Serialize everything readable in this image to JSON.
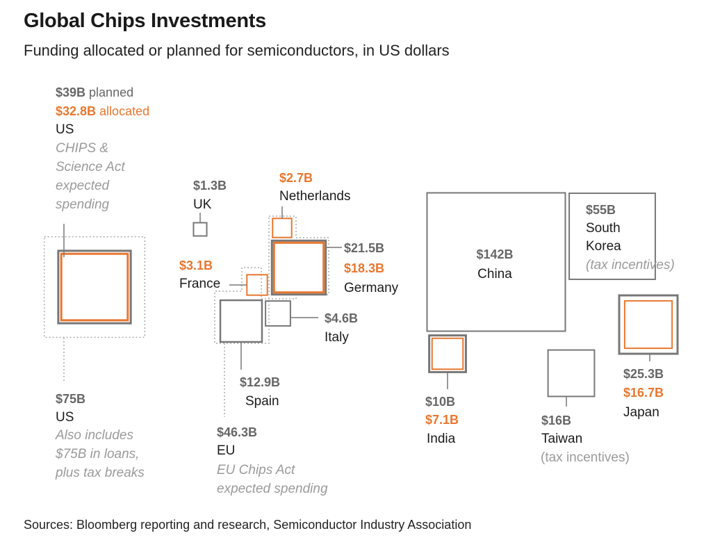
{
  "chart_data": {
    "type": "proportional-area",
    "title": "Global Chips Investments",
    "subtitle": "Funding allocated or planned for semiconductors, in US dollars",
    "source": "Sources: Bloomberg reporting and research, Semiconductor Industry Association",
    "legend": {
      "planned_color": "#777777",
      "allocated_color": "#e8772e",
      "total_color": "#aaaaaa"
    },
    "items": [
      {
        "id": "us-chips",
        "name": "US",
        "planned": 39,
        "allocated": 32.8,
        "planned_label": "$39B",
        "planned_suffix": "planned",
        "allocated_label": "$32.8B",
        "allocated_suffix": "allocated",
        "note": [
          "CHIPS &",
          "Science Act",
          "expected",
          "spending"
        ]
      },
      {
        "id": "us-total",
        "name": "US",
        "total": 75,
        "total_label": "$75B",
        "note": [
          "Also includes",
          "$75B in loans,",
          "plus tax breaks"
        ]
      },
      {
        "id": "uk",
        "name": "UK",
        "planned": 1.3,
        "planned_label": "$1.3B"
      },
      {
        "id": "netherlands",
        "name": "Netherlands",
        "allocated": 2.7,
        "allocated_label": "$2.7B"
      },
      {
        "id": "germany",
        "name": "Germany",
        "planned": 21.5,
        "allocated": 18.3,
        "planned_label": "$21.5B",
        "allocated_label": "$18.3B"
      },
      {
        "id": "france",
        "name": "France",
        "allocated": 3.1,
        "allocated_label": "$3.1B"
      },
      {
        "id": "italy",
        "name": "Italy",
        "planned": 4.6,
        "planned_label": "$4.6B"
      },
      {
        "id": "spain",
        "name": "Spain",
        "planned": 12.9,
        "planned_label": "$12.9B"
      },
      {
        "id": "eu-total",
        "name": "EU",
        "total": 46.3,
        "total_label": "$46.3B",
        "note": [
          "EU Chips Act",
          "expected spending"
        ]
      },
      {
        "id": "china",
        "name": "China",
        "planned": 142,
        "planned_label": "$142B"
      },
      {
        "id": "south-korea",
        "name": "South Korea",
        "planned": 55,
        "planned_label": "$55B",
        "name_lines": [
          "South",
          "Korea"
        ],
        "note": [
          "(tax incentives)"
        ]
      },
      {
        "id": "japan",
        "name": "Japan",
        "planned": 25.3,
        "allocated": 16.7,
        "planned_label": "$25.3B",
        "allocated_label": "$16.7B"
      },
      {
        "id": "india",
        "name": "India",
        "planned": 10,
        "allocated": 7.1,
        "planned_label": "$10B",
        "allocated_label": "$7.1B"
      },
      {
        "id": "taiwan",
        "name": "Taiwan",
        "planned": 16,
        "planned_label": "$16B",
        "note": [
          "(tax incentives)"
        ]
      }
    ]
  }
}
